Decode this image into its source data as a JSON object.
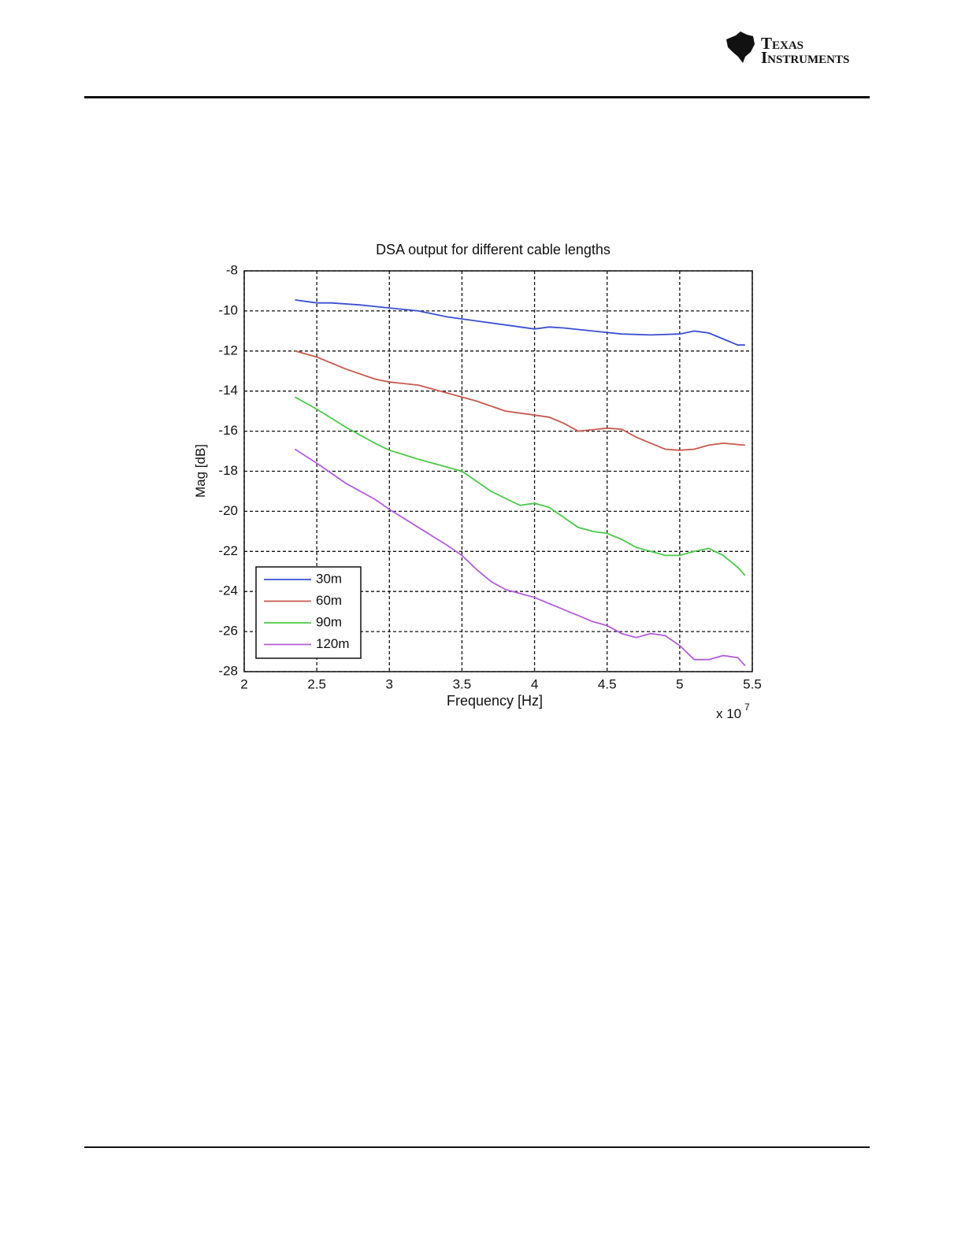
{
  "header": {
    "logo": [
      "Texas",
      "Instruments"
    ]
  },
  "chart_data": {
    "type": "line",
    "title": "DSA output for different cable lengths",
    "x_label": "Frequency [Hz]",
    "y_label": "Mag [dB]",
    "x_multiplier": {
      "base": "x 10",
      "exponent": "7"
    },
    "xlim": [
      2,
      5.5
    ],
    "xticks": [
      2,
      2.5,
      3,
      3.5,
      4,
      4.5,
      5,
      5.5
    ],
    "ylim": [
      -28,
      -8
    ],
    "yticks": [
      -28,
      -26,
      -24,
      -22,
      -20,
      -18,
      -16,
      -14,
      -12,
      -10,
      -8
    ],
    "grid": true,
    "legend": "lower left",
    "series": [
      {
        "name": "30m",
        "color": "#3a4fd2",
        "x": [
          2.35,
          2.5,
          2.6,
          2.8,
          3.0,
          3.2,
          3.4,
          3.6,
          3.8,
          4.0,
          4.1,
          4.2,
          4.4,
          4.6,
          4.8,
          5.0,
          5.1,
          5.2,
          5.3,
          5.4,
          5.45
        ],
        "values": [
          -9.45,
          -9.6,
          -9.6,
          -9.7,
          -9.85,
          -10.0,
          -10.3,
          -10.5,
          -10.7,
          -10.9,
          -10.8,
          -10.85,
          -11.0,
          -11.15,
          -11.2,
          -11.15,
          -11.0,
          -11.1,
          -11.4,
          -11.7,
          -11.7
        ]
      },
      {
        "name": "60m",
        "color": "#c8584e",
        "x": [
          2.35,
          2.5,
          2.7,
          2.9,
          3.0,
          3.2,
          3.4,
          3.6,
          3.8,
          4.0,
          4.1,
          4.2,
          4.3,
          4.5,
          4.6,
          4.7,
          4.8,
          4.9,
          5.0,
          5.1,
          5.2,
          5.3,
          5.45
        ],
        "values": [
          -12.0,
          -12.3,
          -12.9,
          -13.4,
          -13.55,
          -13.7,
          -14.1,
          -14.5,
          -15.0,
          -15.2,
          -15.3,
          -15.6,
          -16.0,
          -15.85,
          -15.9,
          -16.3,
          -16.6,
          -16.9,
          -16.95,
          -16.9,
          -16.7,
          -16.6,
          -16.7
        ]
      },
      {
        "name": "90m",
        "color": "#4cc94a",
        "x": [
          2.35,
          2.5,
          2.7,
          2.9,
          3.0,
          3.2,
          3.4,
          3.5,
          3.6,
          3.7,
          3.8,
          3.9,
          4.0,
          4.1,
          4.2,
          4.3,
          4.4,
          4.5,
          4.6,
          4.7,
          4.8,
          4.9,
          5.0,
          5.1,
          5.2,
          5.3,
          5.4,
          5.45
        ],
        "values": [
          -14.3,
          -14.9,
          -15.8,
          -16.6,
          -16.95,
          -17.4,
          -17.8,
          -18.0,
          -18.5,
          -19.0,
          -19.35,
          -19.7,
          -19.6,
          -19.8,
          -20.3,
          -20.8,
          -21.0,
          -21.1,
          -21.4,
          -21.8,
          -22.0,
          -22.2,
          -22.2,
          -22.0,
          -21.85,
          -22.2,
          -22.8,
          -23.2
        ]
      },
      {
        "name": "120m",
        "color": "#b25fd8",
        "x": [
          2.35,
          2.5,
          2.7,
          2.9,
          3.0,
          3.2,
          3.4,
          3.5,
          3.6,
          3.7,
          3.8,
          3.9,
          4.0,
          4.1,
          4.2,
          4.3,
          4.4,
          4.5,
          4.6,
          4.7,
          4.8,
          4.9,
          5.0,
          5.1,
          5.2,
          5.3,
          5.4,
          5.45
        ],
        "values": [
          -16.9,
          -17.6,
          -18.6,
          -19.4,
          -19.9,
          -20.8,
          -21.7,
          -22.2,
          -22.9,
          -23.5,
          -23.9,
          -24.1,
          -24.3,
          -24.6,
          -24.9,
          -25.2,
          -25.5,
          -25.7,
          -26.1,
          -26.3,
          -26.1,
          -26.2,
          -26.7,
          -27.4,
          -27.4,
          -27.2,
          -27.3,
          -27.7
        ]
      }
    ]
  }
}
